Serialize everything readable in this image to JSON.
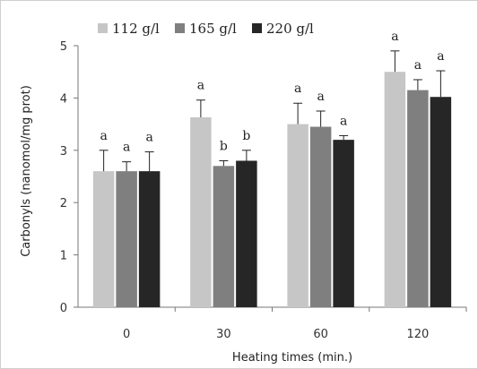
{
  "chart_data": {
    "type": "bar",
    "title": "",
    "xlabel": "Heating times (min.)",
    "ylabel": "Carbonyls (nanomol/mg prot)",
    "categories": [
      "0",
      "30",
      "60",
      "120"
    ],
    "ylim": [
      0,
      5
    ],
    "yticks": [
      "0",
      "1",
      "2",
      "3",
      "4",
      "5"
    ],
    "grid": false,
    "legend_position": "top",
    "series": [
      {
        "name": "112 g/l",
        "color": "#c6c6c6",
        "values": [
          2.6,
          3.63,
          3.5,
          4.5
        ],
        "errors": [
          0.4,
          0.33,
          0.4,
          0.4
        ],
        "labels": [
          "a",
          "a",
          "a",
          "a"
        ]
      },
      {
        "name": "165 g/l",
        "color": "#7f7f7f",
        "values": [
          2.6,
          2.7,
          3.45,
          4.15
        ],
        "errors": [
          0.18,
          0.1,
          0.3,
          0.2
        ],
        "labels": [
          "a",
          "b",
          "a",
          "a"
        ]
      },
      {
        "name": "220 g/l",
        "color": "#262626",
        "values": [
          2.6,
          2.8,
          3.2,
          4.02
        ],
        "errors": [
          0.37,
          0.2,
          0.08,
          0.5
        ],
        "labels": [
          "a",
          "b",
          "a",
          "a"
        ]
      }
    ]
  }
}
